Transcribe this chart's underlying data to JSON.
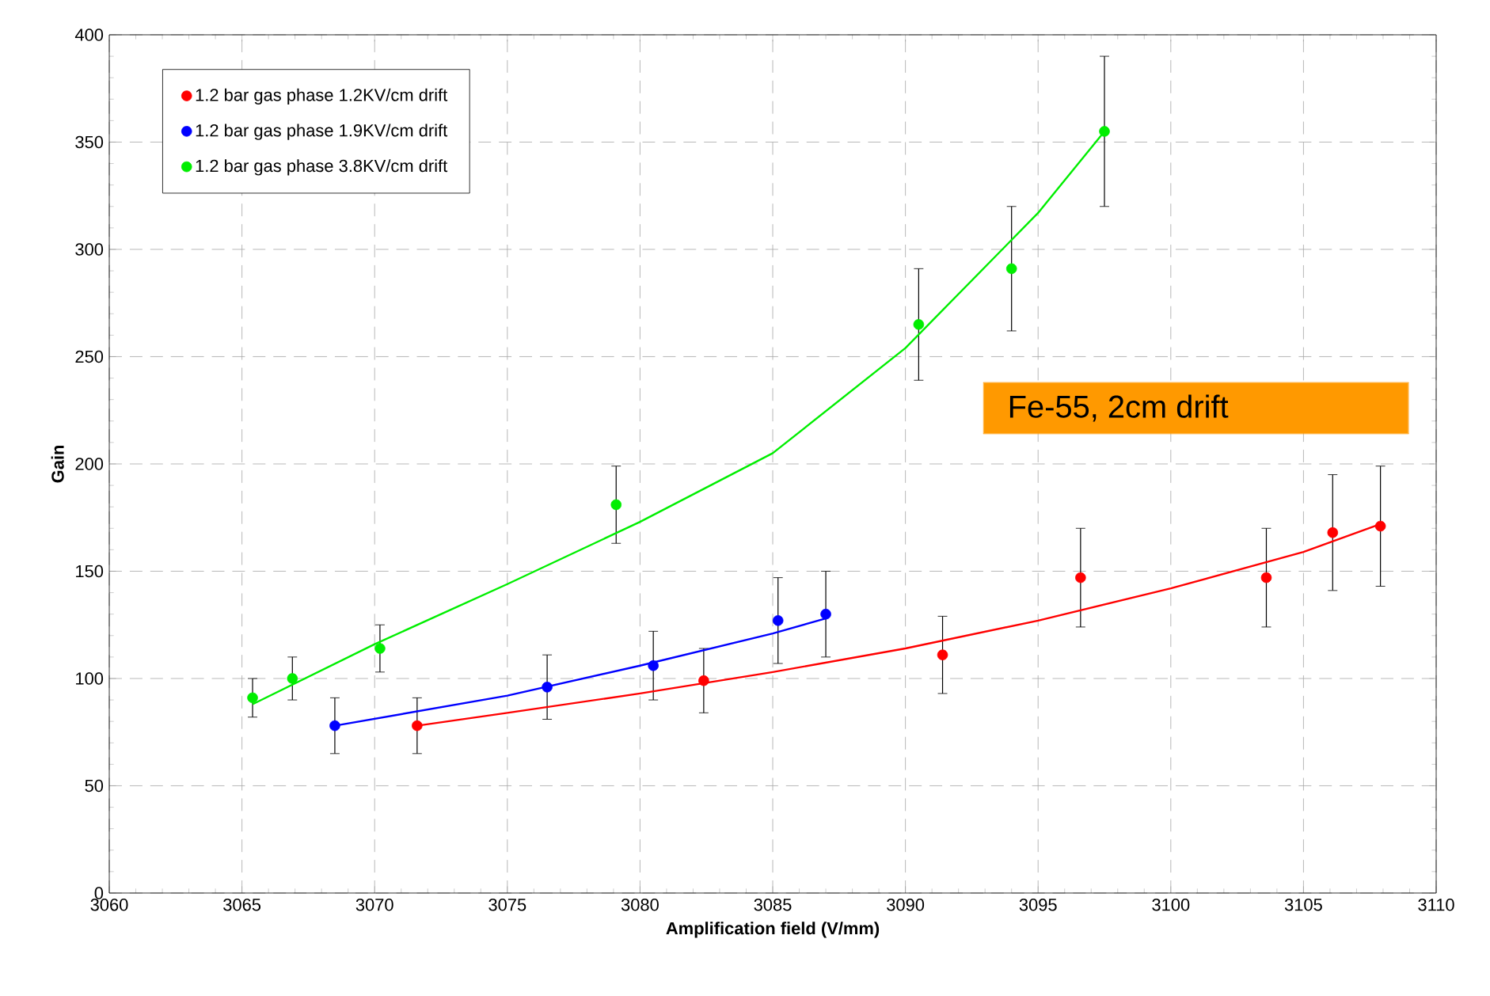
{
  "chart_data": {
    "type": "scatter",
    "xlabel": "Amplification field (V/mm)",
    "ylabel": "Gain",
    "annotations": [
      "Fe-55, 2cm drift"
    ],
    "xlim": [
      3060,
      3110
    ],
    "xticks": [
      3060,
      3065,
      3070,
      3075,
      3080,
      3085,
      3090,
      3095,
      3100,
      3105,
      3110
    ],
    "ylim": [
      0,
      400
    ],
    "yticks": [
      0,
      50,
      100,
      150,
      200,
      250,
      300,
      350,
      400
    ],
    "grid": true,
    "legend": "top left",
    "marker": "circle",
    "series": [
      {
        "name": "1.2 bar gas phase 1.2KV/cm drift",
        "color": "#ff0000",
        "x": [
          3071.6,
          3082.4,
          3091.4,
          3096.6,
          3103.6,
          3106.1,
          3107.9
        ],
        "values": [
          78,
          99,
          111,
          147,
          147,
          168,
          171
        ],
        "errors": [
          13,
          15,
          18,
          23,
          23,
          27,
          28
        ]
      },
      {
        "name": "1.2 bar gas phase 1.9KV/cm drift",
        "color": "#0000ff",
        "x": [
          3068.5,
          3076.5,
          3080.5,
          3085.2,
          3087.0
        ],
        "values": [
          78,
          96,
          106,
          127,
          130
        ],
        "errors": [
          13,
          15,
          16,
          20,
          20
        ]
      },
      {
        "name": "1.2 bar gas phase 3.8KV/cm drift",
        "color": "#00ee00",
        "x": [
          3065.4,
          3066.9,
          3070.2,
          3079.1,
          3090.5,
          3094.0,
          3097.5
        ],
        "values": [
          91,
          100,
          114,
          181,
          265,
          291,
          355
        ],
        "errors": [
          9,
          10,
          11,
          18,
          26,
          29,
          35
        ]
      },
      {
        "type": "line",
        "color": "#ff0000",
        "marker": "none",
        "x": [
          3071.6,
          3075,
          3080,
          3085,
          3090,
          3095,
          3100,
          3105,
          3107.9
        ],
        "values": [
          78,
          84,
          93,
          103,
          114,
          127,
          142,
          159,
          172
        ]
      },
      {
        "type": "line",
        "color": "#0000ff",
        "marker": "none",
        "x": [
          3068.5,
          3075,
          3080,
          3085,
          3087.0
        ],
        "values": [
          78,
          92,
          106,
          121,
          128
        ]
      },
      {
        "type": "line",
        "color": "#00ee00",
        "marker": "none",
        "x": [
          3065.4,
          3070,
          3075,
          3080,
          3085,
          3090,
          3095,
          3097.5
        ],
        "values": [
          88,
          116,
          144,
          173,
          205,
          254,
          317,
          355
        ]
      }
    ]
  }
}
